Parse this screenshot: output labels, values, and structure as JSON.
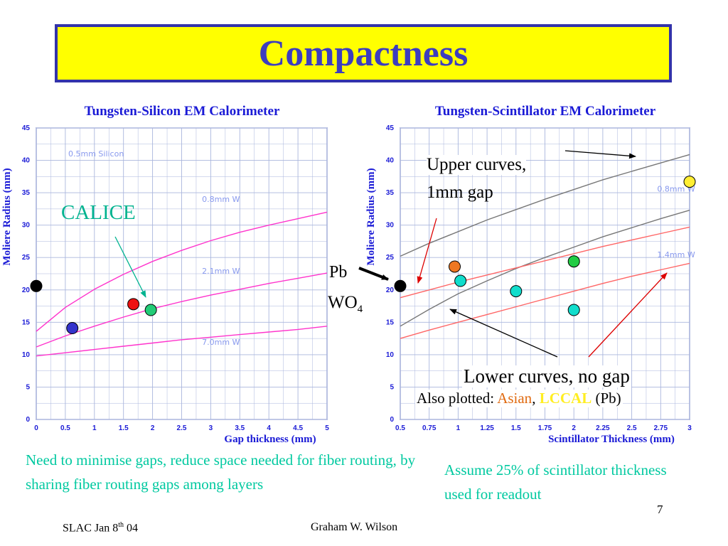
{
  "slide": {
    "title": "Compactness",
    "page_number": "7",
    "footer_left_main": "SLAC Jan 8",
    "footer_left_sup": "th",
    "footer_left_tail": " 04",
    "footer_center": "Graham W. Wilson"
  },
  "annotations": {
    "calice": "CALICE",
    "pb": "Pb",
    "wo4_main": "WO",
    "wo4_sub": "4",
    "upper_curves_1": "Upper curves,",
    "upper_curves_2": "1mm gap",
    "lower_curves": "Lower curves, no gap",
    "also_plotted_prefix": "Also plotted: ",
    "also_asian": "Asian",
    "also_comma": ", ",
    "also_lccal": "LCCAL",
    "also_suffix": " (Pb)",
    "note_left": "Need to minimise gaps, reduce space needed for fiber routing, by sharing fiber routing gaps among layers",
    "note_right": "Assume 25% of scintillator thickness used for readout"
  },
  "colors": {
    "title_bg": "#ffff00",
    "title_border": "#3333aa",
    "title_text": "#3d3dbf",
    "axis_text": "#1a1ad6",
    "teal_note": "#00c9a0",
    "silicon_curve": "#ff33cc",
    "scint_gray": "#777777",
    "scint_red": "#ff6666",
    "arrow_red": "#dd0000",
    "arrow_teal": "#00b38f"
  },
  "chart_data": [
    {
      "type": "line",
      "title": "Tungsten-Silicon EM Calorimeter",
      "xlabel": "Gap thickness (mm)",
      "ylabel": "Moliere Radius (mm)",
      "xlim": [
        0,
        5
      ],
      "ylim": [
        0,
        45
      ],
      "xticks": [
        "0",
        "0.5",
        "1",
        "1.5",
        "2",
        "2.5",
        "3",
        "3.5",
        "4",
        "4.5",
        "5"
      ],
      "yticks": [
        "0",
        "5",
        "10",
        "15",
        "20",
        "25",
        "30",
        "35",
        "40",
        "45"
      ],
      "grid": true,
      "series": [
        {
          "name": "0.8mm W",
          "x": [
            0,
            0.5,
            1,
            1.5,
            2,
            2.5,
            3,
            3.5,
            4,
            4.5,
            5
          ],
          "values": [
            13.6,
            17.3,
            20.1,
            22.4,
            24.4,
            26.1,
            27.6,
            28.9,
            30.0,
            31.0,
            32.0
          ]
        },
        {
          "name": "2.1mm W",
          "x": [
            0,
            0.5,
            1,
            1.5,
            2,
            2.5,
            3,
            3.5,
            4,
            4.5,
            5
          ],
          "values": [
            11.2,
            12.9,
            14.4,
            15.8,
            17.1,
            18.2,
            19.2,
            20.1,
            21.0,
            21.8,
            22.6
          ]
        },
        {
          "name": "7.0mm W",
          "x": [
            0,
            0.5,
            1,
            1.5,
            2,
            2.5,
            3,
            3.5,
            4,
            4.5,
            5
          ],
          "values": [
            9.8,
            10.3,
            10.8,
            11.3,
            11.8,
            12.3,
            12.7,
            13.1,
            13.5,
            13.9,
            14.4
          ]
        }
      ],
      "curve_labels": [
        "0.5mm Silicon",
        "0.8mm W",
        "2.1mm W",
        "7.0mm W"
      ],
      "points": [
        {
          "name": "Pb WO4",
          "x": 0,
          "y": 20.6,
          "color": "#000000"
        },
        {
          "name": "blue",
          "x": 0.62,
          "y": 14.1,
          "color": "#3333cc"
        },
        {
          "name": "red",
          "x": 1.67,
          "y": 17.8,
          "color": "#ee1111"
        },
        {
          "name": "CALICE",
          "x": 1.97,
          "y": 16.9,
          "color": "#22cc77"
        }
      ]
    },
    {
      "type": "line",
      "title": "Tungsten-Scintillator EM Calorimeter",
      "xlabel": "Scintillator Thickness (mm)",
      "ylabel": "Moliere Radius (mm)",
      "xlim": [
        0.5,
        3
      ],
      "ylim": [
        0,
        45
      ],
      "xticks": [
        "0.5",
        "0.75",
        "1",
        "1.25",
        "1.5",
        "1.75",
        "2",
        "2.25",
        "2.5",
        "2.75",
        "3"
      ],
      "yticks": [
        "0",
        "5",
        "10",
        "15",
        "20",
        "25",
        "30",
        "35",
        "40",
        "45"
      ],
      "grid": true,
      "series": [
        {
          "name": "0.8mm W, 1mm gap",
          "x": [
            0.5,
            0.75,
            1,
            1.25,
            1.5,
            1.75,
            2,
            2.25,
            2.5,
            2.75,
            3
          ],
          "values": [
            25.2,
            27.2,
            29.0,
            30.8,
            32.4,
            34.0,
            35.5,
            37.0,
            38.3,
            39.6,
            40.9
          ]
        },
        {
          "name": "0.8mm W, no gap",
          "x": [
            0.5,
            0.75,
            1,
            1.25,
            1.5,
            1.75,
            2,
            2.25,
            2.5,
            2.75,
            3
          ],
          "values": [
            14.4,
            17.0,
            19.4,
            21.4,
            23.3,
            25.0,
            26.6,
            28.2,
            29.6,
            31.0,
            32.3
          ]
        },
        {
          "name": "1.4mm W, 1mm gap",
          "x": [
            0.5,
            0.75,
            1,
            1.25,
            1.5,
            1.75,
            2,
            2.25,
            2.5,
            2.75,
            3
          ],
          "values": [
            18.8,
            20.0,
            21.2,
            22.3,
            23.4,
            24.5,
            25.6,
            26.7,
            27.7,
            28.7,
            29.7
          ]
        },
        {
          "name": "1.4mm W, no gap",
          "x": [
            0.5,
            0.75,
            1,
            1.25,
            1.5,
            1.75,
            2,
            2.25,
            2.5,
            2.75,
            3
          ],
          "values": [
            12.5,
            13.8,
            15.0,
            16.2,
            17.4,
            18.6,
            19.8,
            21.0,
            22.1,
            23.1,
            24.1
          ]
        }
      ],
      "curve_labels": [
        "0.8mm W",
        "1.4mm W"
      ],
      "points": [
        {
          "name": "Pb WO4",
          "x": 0.5,
          "y": 20.6,
          "color": "#000000"
        },
        {
          "name": "Asian",
          "x": 0.97,
          "y": 23.6,
          "color": "#ee7722"
        },
        {
          "name": "cyan1",
          "x": 1.02,
          "y": 21.4,
          "color": "#11ddcc"
        },
        {
          "name": "cyan2",
          "x": 1.5,
          "y": 19.8,
          "color": "#11ddcc"
        },
        {
          "name": "cyan3",
          "x": 2.0,
          "y": 16.9,
          "color": "#11ddcc"
        },
        {
          "name": "green",
          "x": 2.0,
          "y": 24.4,
          "color": "#22cc44"
        },
        {
          "name": "LCCAL",
          "x": 3.0,
          "y": 36.7,
          "color": "#ffee33"
        }
      ]
    }
  ]
}
